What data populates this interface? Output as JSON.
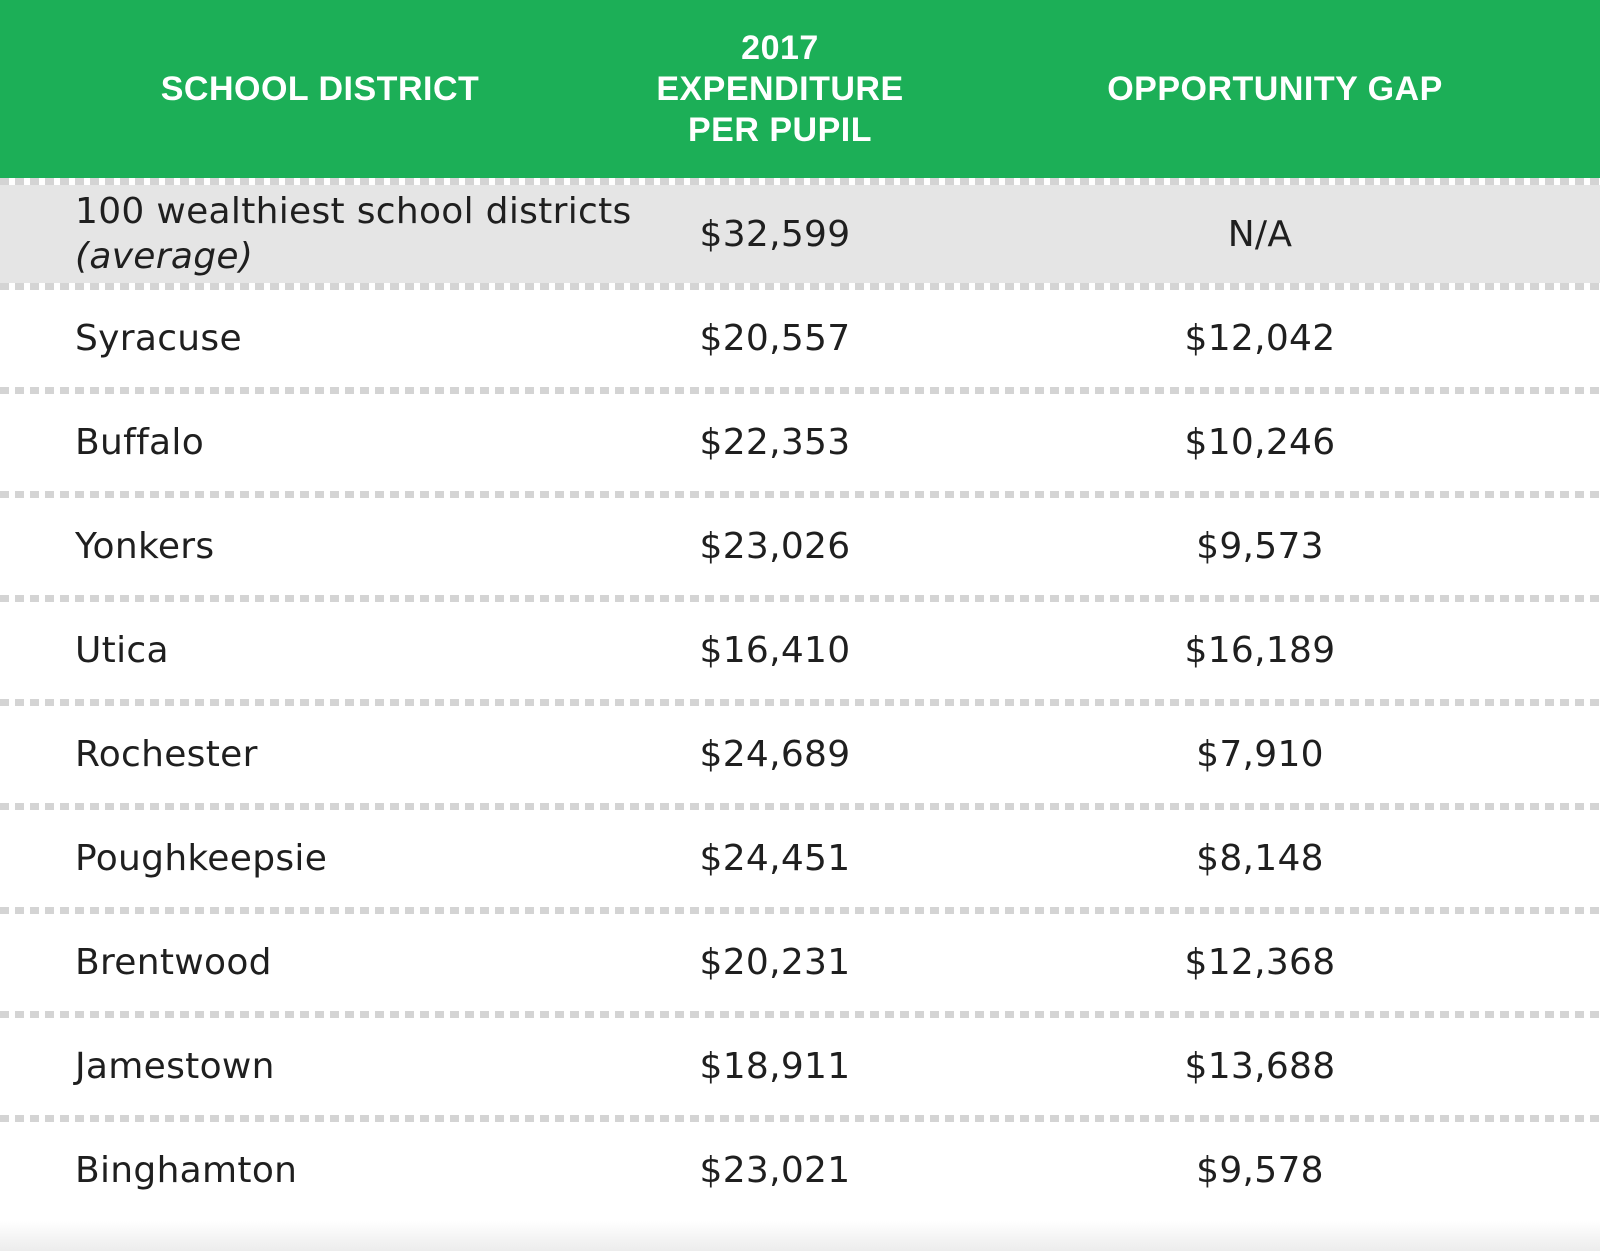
{
  "header": {
    "col1": "SCHOOL DISTRICT",
    "col2_line1": "2017",
    "col2_line2": "EXPENDITURE",
    "col2_line3": "PER PUPIL",
    "col3": "OPPORTUNITY GAP"
  },
  "colors": {
    "header_bg": "#1caf57",
    "header_text": "#ffffff",
    "highlight_row_bg": "#e5e5e5",
    "divider": "#d4d4d4"
  },
  "rows": [
    {
      "district": "100 wealthiest school districts",
      "district_note": "(average)",
      "expenditure": "$32,599",
      "gap": "N/A"
    },
    {
      "district": "Syracuse",
      "expenditure": "$20,557",
      "gap": "$12,042"
    },
    {
      "district": "Buffalo",
      "expenditure": "$22,353",
      "gap": "$10,246"
    },
    {
      "district": "Yonkers",
      "expenditure": "$23,026",
      "gap": "$9,573"
    },
    {
      "district": "Utica",
      "expenditure": "$16,410",
      "gap": "$16,189"
    },
    {
      "district": "Rochester",
      "expenditure": "$24,689",
      "gap": "$7,910"
    },
    {
      "district": "Poughkeepsie",
      "expenditure": "$24,451",
      "gap": "$8,148"
    },
    {
      "district": "Brentwood",
      "expenditure": "$20,231",
      "gap": "$12,368"
    },
    {
      "district": "Jamestown",
      "expenditure": "$18,911",
      "gap": "$13,688"
    },
    {
      "district": "Binghamton",
      "expenditure": "$23,021",
      "gap": "$9,578"
    }
  ]
}
